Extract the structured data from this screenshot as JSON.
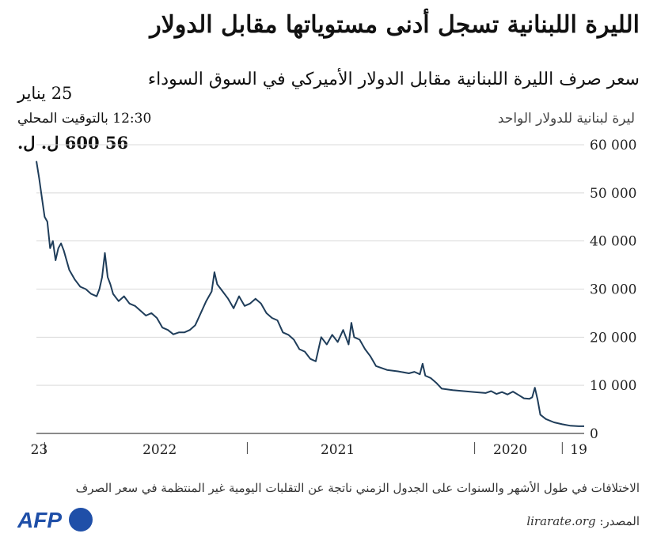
{
  "header": {
    "title": "الليرة اللبنانية تسجل أدنى مستوياتها مقابل الدولار",
    "subtitle": "سعر صرف الليرة اللبنانية مقابل الدولار الأميركي في السوق السوداء",
    "unit_label": "ليرة لبنانية للدولار الواحد"
  },
  "annotation": {
    "date": "25 يناير",
    "time": "12:30 بالتوقيت المحلي",
    "value": "56 600 ل. ل."
  },
  "footer": {
    "footnote": "الاختلافات في طول الأشهر والسنوات على الجدول الزمني ناتجة عن التقلبات اليومية غير المنتظمة في سعر الصرف",
    "source_label": "المصدر:",
    "source_site": "lirarate.org",
    "logo_text": "AFP"
  },
  "colors": {
    "line": "#1f3d5a",
    "grid": "#d9d9d9",
    "axis": "#444444",
    "logo": "#1f4fa8"
  },
  "chart_data": {
    "type": "line",
    "title": "الليرة اللبنانية تسجل أدنى مستوياتها مقابل الدولار",
    "ylabel": "ليرة لبنانية للدولار الواحد",
    "xlabel": "",
    "ylim": [
      0,
      60000
    ],
    "y_ticks": [
      0,
      10000,
      20000,
      30000,
      40000,
      50000,
      60000
    ],
    "y_tick_labels": [
      "0",
      "10 000",
      "20 000",
      "30 000",
      "40 000",
      "50 000",
      "60 000"
    ],
    "x_direction": "right-to-left",
    "x_range": [
      0,
      100
    ],
    "x_tick_labels": [
      {
        "label": "19",
        "x": 1
      },
      {
        "label": "2020",
        "x": 13.5
      },
      {
        "label": "2021",
        "x": 45
      },
      {
        "label": "2022",
        "x": 77.5
      },
      {
        "label": "23",
        "x": 99.5
      }
    ],
    "x_separators": [
      4,
      20,
      61.5,
      98.5
    ],
    "grid": "horizontal",
    "series": [
      {
        "values": [
          [
            0.0,
            1500
          ],
          [
            1.0,
            1500
          ],
          [
            2.5,
            1600
          ],
          [
            4.0,
            1900
          ],
          [
            5.5,
            2300
          ],
          [
            7.0,
            3000
          ],
          [
            8.0,
            3900
          ],
          [
            8.5,
            7000
          ],
          [
            9.0,
            9500
          ],
          [
            9.5,
            7500
          ],
          [
            10.0,
            7200
          ],
          [
            11.0,
            7300
          ],
          [
            12.0,
            8000
          ],
          [
            13.0,
            8700
          ],
          [
            14.0,
            8100
          ],
          [
            15.0,
            8600
          ],
          [
            16.0,
            8200
          ],
          [
            17.0,
            8800
          ],
          [
            18.0,
            8400
          ],
          [
            20.0,
            8600
          ],
          [
            22.0,
            8800
          ],
          [
            24.0,
            9000
          ],
          [
            26.0,
            9300
          ],
          [
            27.0,
            10500
          ],
          [
            28.0,
            11500
          ],
          [
            29.0,
            12000
          ],
          [
            29.5,
            14500
          ],
          [
            30.0,
            12300
          ],
          [
            31.0,
            12800
          ],
          [
            32.0,
            12500
          ],
          [
            34.0,
            12900
          ],
          [
            36.0,
            13200
          ],
          [
            38.0,
            14000
          ],
          [
            39.0,
            16000
          ],
          [
            40.0,
            17500
          ],
          [
            41.0,
            19500
          ],
          [
            42.0,
            20000
          ],
          [
            42.5,
            23000
          ],
          [
            43.0,
            18500
          ],
          [
            44.0,
            21500
          ],
          [
            45.0,
            19000
          ],
          [
            46.0,
            20500
          ],
          [
            47.0,
            18500
          ],
          [
            48.0,
            20000
          ],
          [
            49.0,
            15000
          ],
          [
            50.0,
            15500
          ],
          [
            51.0,
            17000
          ],
          [
            52.0,
            17500
          ],
          [
            53.0,
            19500
          ],
          [
            54.0,
            20500
          ],
          [
            55.0,
            21000
          ],
          [
            56.0,
            23500
          ],
          [
            57.0,
            24000
          ],
          [
            58.0,
            25000
          ],
          [
            59.0,
            27000
          ],
          [
            60.0,
            28000
          ],
          [
            61.0,
            27000
          ],
          [
            62.0,
            26500
          ],
          [
            63.0,
            28500
          ],
          [
            64.0,
            26000
          ],
          [
            65.0,
            28000
          ],
          [
            66.0,
            29500
          ],
          [
            67.0,
            31000
          ],
          [
            67.5,
            33500
          ],
          [
            68.0,
            29500
          ],
          [
            69.0,
            27500
          ],
          [
            70.0,
            25000
          ],
          [
            71.0,
            22500
          ],
          [
            72.0,
            21500
          ],
          [
            73.0,
            21000
          ],
          [
            74.0,
            21000
          ],
          [
            75.0,
            20600
          ],
          [
            76.0,
            21500
          ],
          [
            77.0,
            22000
          ],
          [
            78.0,
            24000
          ],
          [
            79.0,
            25000
          ],
          [
            80.0,
            24500
          ],
          [
            81.0,
            25500
          ],
          [
            82.0,
            26500
          ],
          [
            83.0,
            27000
          ],
          [
            84.0,
            28500
          ],
          [
            85.0,
            27500
          ],
          [
            86.0,
            29000
          ],
          [
            86.5,
            31000
          ],
          [
            87.0,
            32500
          ],
          [
            87.5,
            37500
          ],
          [
            88.0,
            32500
          ],
          [
            88.5,
            30000
          ],
          [
            89.0,
            28500
          ],
          [
            90.0,
            29000
          ],
          [
            91.0,
            30000
          ],
          [
            92.0,
            30500
          ],
          [
            93.0,
            32000
          ],
          [
            94.0,
            34000
          ],
          [
            95.0,
            38000
          ],
          [
            95.5,
            39500
          ],
          [
            96.0,
            38500
          ],
          [
            96.5,
            36000
          ],
          [
            97.0,
            40000
          ],
          [
            97.5,
            38500
          ],
          [
            98.0,
            44000
          ],
          [
            98.5,
            45000
          ],
          [
            99.0,
            49000
          ],
          [
            99.5,
            53000
          ],
          [
            100.0,
            56600
          ]
        ]
      }
    ]
  }
}
